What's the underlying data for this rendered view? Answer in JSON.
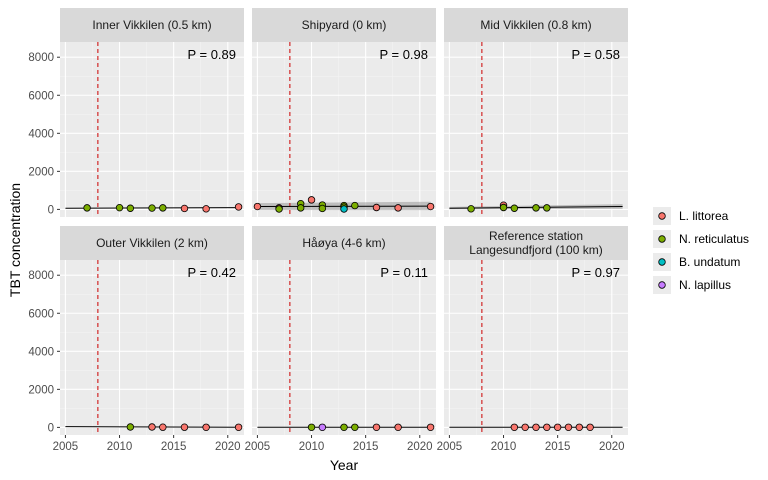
{
  "chart_data": {
    "type": "scatter",
    "xlabel": "Year",
    "ylabel": "TBT concentration",
    "xlim": [
      2004.5,
      2021.5
    ],
    "ylim": [
      -400,
      8800
    ],
    "xticks": [
      2005,
      2010,
      2015,
      2020
    ],
    "yticks": [
      0,
      2000,
      4000,
      6000,
      8000
    ],
    "vline_year": 2008,
    "grid": true,
    "legend_position": "right",
    "series": [
      {
        "name": "L. littorea",
        "color": "#F8766D"
      },
      {
        "name": "N. reticulatus",
        "color": "#7CAE00"
      },
      {
        "name": "B. undatum",
        "color": "#00BFC4"
      },
      {
        "name": "N. lapillus",
        "color": "#C77CFF"
      }
    ],
    "panels": [
      {
        "title": [
          "Inner Vikkilen (0.5 km)"
        ],
        "p_label": "P = 0.89",
        "trend": {
          "x": [
            2005,
            2021
          ],
          "y": [
            60,
            90
          ]
        },
        "band": null,
        "points": [
          {
            "x": 2007,
            "y": 80,
            "s": "N. reticulatus"
          },
          {
            "x": 2010,
            "y": 90,
            "s": "N. reticulatus"
          },
          {
            "x": 2011,
            "y": 60,
            "s": "N. reticulatus"
          },
          {
            "x": 2013,
            "y": 70,
            "s": "N. reticulatus"
          },
          {
            "x": 2014,
            "y": 80,
            "s": "N. reticulatus"
          },
          {
            "x": 2016,
            "y": 50,
            "s": "L. littorea"
          },
          {
            "x": 2018,
            "y": 30,
            "s": "L. littorea"
          },
          {
            "x": 2021,
            "y": 130,
            "s": "L. littorea"
          }
        ]
      },
      {
        "title": [
          "Shipyard (0 km)"
        ],
        "p_label": "P = 0.98",
        "trend": {
          "x": [
            2005,
            2021
          ],
          "y": [
            150,
            170
          ]
        },
        "band": {
          "x": [
            2005,
            2021
          ],
          "lo": [
            -30,
            -40
          ],
          "hi": [
            330,
            400
          ]
        },
        "points": [
          {
            "x": 2005,
            "y": 150,
            "s": "L. littorea"
          },
          {
            "x": 2007,
            "y": 80,
            "s": "L. littorea"
          },
          {
            "x": 2007,
            "y": 20,
            "s": "N. reticulatus"
          },
          {
            "x": 2009,
            "y": 300,
            "s": "N. reticulatus"
          },
          {
            "x": 2009,
            "y": 80,
            "s": "N. reticulatus"
          },
          {
            "x": 2010,
            "y": 500,
            "s": "L. littorea"
          },
          {
            "x": 2011,
            "y": 230,
            "s": "N. reticulatus"
          },
          {
            "x": 2011,
            "y": 50,
            "s": "N. reticulatus"
          },
          {
            "x": 2013,
            "y": 200,
            "s": "N. reticulatus"
          },
          {
            "x": 2013,
            "y": 120,
            "s": "N. reticulatus"
          },
          {
            "x": 2013,
            "y": 20,
            "s": "B. undatum"
          },
          {
            "x": 2014,
            "y": 200,
            "s": "N. reticulatus"
          },
          {
            "x": 2016,
            "y": 100,
            "s": "L. littorea"
          },
          {
            "x": 2018,
            "y": 80,
            "s": "L. littorea"
          },
          {
            "x": 2021,
            "y": 150,
            "s": "L. littorea"
          }
        ]
      },
      {
        "title": [
          "Mid Vikkilen (0.8 km)"
        ],
        "p_label": "P = 0.58",
        "trend": {
          "x": [
            2005,
            2021
          ],
          "y": [
            60,
            150
          ]
        },
        "band": {
          "x": [
            2005,
            2021
          ],
          "lo": [
            0,
            30
          ],
          "hi": [
            130,
            280
          ]
        },
        "points": [
          {
            "x": 2007,
            "y": 30,
            "s": "N. reticulatus"
          },
          {
            "x": 2010,
            "y": 220,
            "s": "L. littorea"
          },
          {
            "x": 2010,
            "y": 100,
            "s": "N. reticulatus"
          },
          {
            "x": 2011,
            "y": 60,
            "s": "N. reticulatus"
          },
          {
            "x": 2013,
            "y": 80,
            "s": "N. reticulatus"
          },
          {
            "x": 2014,
            "y": 80,
            "s": "N. reticulatus"
          }
        ]
      },
      {
        "title": [
          "Outer Vikkilen (2 km)"
        ],
        "p_label": "P = 0.42",
        "trend": {
          "x": [
            2005,
            2021
          ],
          "y": [
            40,
            10
          ]
        },
        "band": null,
        "points": [
          {
            "x": 2011,
            "y": 20,
            "s": "N. reticulatus"
          },
          {
            "x": 2013,
            "y": 20,
            "s": "L. littorea"
          },
          {
            "x": 2014,
            "y": 10,
            "s": "L. littorea"
          },
          {
            "x": 2016,
            "y": 10,
            "s": "L. littorea"
          },
          {
            "x": 2018,
            "y": 5,
            "s": "L. littorea"
          },
          {
            "x": 2021,
            "y": 5,
            "s": "L. littorea"
          }
        ]
      },
      {
        "title": [
          "Håøya (4-6 km)"
        ],
        "p_label": "P = 0.11",
        "trend": {
          "x": [
            2005,
            2021
          ],
          "y": [
            5,
            5
          ]
        },
        "band": null,
        "points": [
          {
            "x": 2010,
            "y": 5,
            "s": "N. reticulatus"
          },
          {
            "x": 2011,
            "y": 5,
            "s": "N. lapillus"
          },
          {
            "x": 2013,
            "y": 5,
            "s": "N. reticulatus"
          },
          {
            "x": 2014,
            "y": 5,
            "s": "N. reticulatus"
          },
          {
            "x": 2016,
            "y": 5,
            "s": "L. littorea"
          },
          {
            "x": 2018,
            "y": 5,
            "s": "L. littorea"
          },
          {
            "x": 2021,
            "y": 5,
            "s": "L. littorea"
          }
        ]
      },
      {
        "title": [
          "Reference station",
          "Langesundfjord (100 km)"
        ],
        "p_label": "P = 0.97",
        "trend": {
          "x": [
            2005,
            2021
          ],
          "y": [
            5,
            5
          ]
        },
        "band": null,
        "points": [
          {
            "x": 2011,
            "y": 5,
            "s": "L. littorea"
          },
          {
            "x": 2012,
            "y": 5,
            "s": "L. littorea"
          },
          {
            "x": 2013,
            "y": 5,
            "s": "L. littorea"
          },
          {
            "x": 2014,
            "y": 5,
            "s": "L. littorea"
          },
          {
            "x": 2015,
            "y": 5,
            "s": "L. littorea"
          },
          {
            "x": 2016,
            "y": 5,
            "s": "L. littorea"
          },
          {
            "x": 2017,
            "y": 5,
            "s": "L. littorea"
          },
          {
            "x": 2018,
            "y": 5,
            "s": "L. littorea"
          }
        ]
      }
    ]
  }
}
